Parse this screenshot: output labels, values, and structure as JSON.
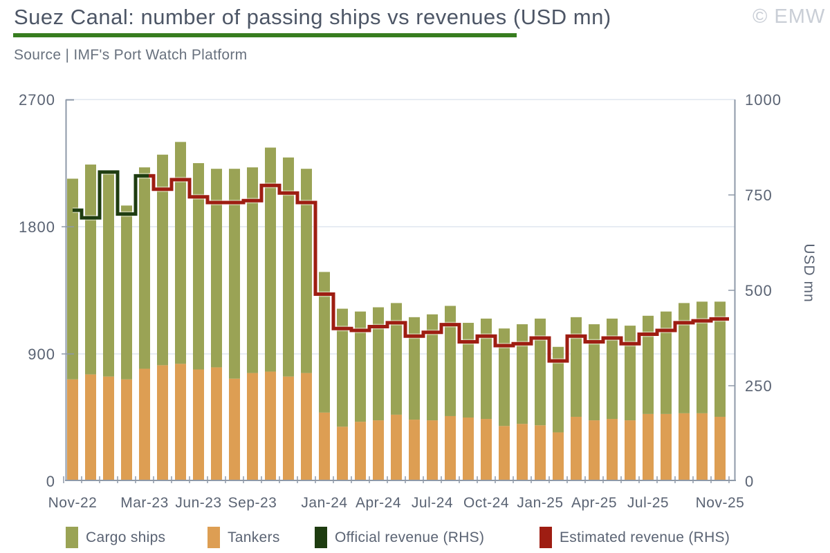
{
  "header": {
    "title": "Suez Canal: number of passing ships vs revenues (USD mn)",
    "copyright": "© EMW",
    "source": "Source | IMF's Port Watch Platform"
  },
  "colors": {
    "cargo": "#9aa355",
    "tankers": "#dd9e53",
    "official": "#1e3c10",
    "estimated": "#9e1d12",
    "gridline": "#dfe5ef",
    "axis": "#8e99a8",
    "tick_text": "#5a6373",
    "title_text": "#4d5666",
    "underline": "#377d1f"
  },
  "legend": {
    "items": [
      {
        "label": "Cargo ships",
        "color": "#9aa355"
      },
      {
        "label": "Tankers",
        "color": "#dd9e53"
      },
      {
        "label": "Official revenue (RHS)",
        "color": "#1e3c10"
      },
      {
        "label": "Estimated revenue (RHS)",
        "color": "#9e1d12"
      }
    ]
  },
  "chart_data": {
    "type": "bar",
    "stacked": true,
    "title": "Suez Canal: number of passing ships vs revenues (USD mn)",
    "xlabel": "",
    "ylabel_left": "",
    "ylabel_right": "USD mn",
    "left_axis": {
      "range": [
        0,
        2700
      ],
      "ticks": [
        0,
        900,
        1800,
        2700
      ]
    },
    "right_axis": {
      "range": [
        0,
        1000
      ],
      "ticks": [
        0,
        250,
        500,
        750,
        1000
      ]
    },
    "grid": "horizontal",
    "legend_position": "bottom",
    "categories": [
      "Nov-22",
      "Dec-22",
      "Jan-23",
      "Feb-23",
      "Mar-23",
      "Apr-23",
      "May-23",
      "Jun-23",
      "Jul-23",
      "Aug-23",
      "Sep-23",
      "Oct-23",
      "Nov-23",
      "Dec-23",
      "Jan-24",
      "Feb-24",
      "Mar-24",
      "Apr-24",
      "May-24",
      "Jun-24",
      "Jul-24",
      "Aug-24",
      "Sep-24",
      "Oct-24",
      "Nov-24",
      "Dec-24",
      "Jan-25",
      "Feb-25",
      "Mar-25",
      "Apr-25",
      "May-25",
      "Jun-25",
      "Jul-25",
      "Aug-25",
      "Sep-25",
      "Oct-25",
      "Nov-25"
    ],
    "x_ticks": [
      {
        "index": 0,
        "label": "Nov-22"
      },
      {
        "index": 4,
        "label": "Mar-23"
      },
      {
        "index": 7,
        "label": "Jun-23"
      },
      {
        "index": 10,
        "label": "Sep-23"
      },
      {
        "index": 14,
        "label": "Jan-24"
      },
      {
        "index": 17,
        "label": "Apr-24"
      },
      {
        "index": 20,
        "label": "Jul-24"
      },
      {
        "index": 23,
        "label": "Oct-24"
      },
      {
        "index": 26,
        "label": "Jan-25"
      },
      {
        "index": 29,
        "label": "Apr-25"
      },
      {
        "index": 32,
        "label": "Jul-25"
      },
      {
        "index": 36,
        "label": "Nov-25"
      }
    ],
    "series": [
      {
        "name": "Cargo ships",
        "kind": "bar",
        "axis": "left",
        "color": "#9aa355",
        "values": [
          1420,
          1485,
          1450,
          1230,
          1425,
          1490,
          1570,
          1460,
          1405,
          1485,
          1455,
          1585,
          1550,
          1445,
          995,
          835,
          780,
          800,
          790,
          725,
          750,
          780,
          670,
          710,
          690,
          705,
          755,
          605,
          705,
          680,
          710,
          670,
          695,
          725,
          780,
          790,
          815
        ]
      },
      {
        "name": "Tankers",
        "kind": "bar",
        "axis": "left",
        "color": "#dd9e53",
        "values": [
          720,
          755,
          740,
          720,
          795,
          820,
          830,
          790,
          805,
          725,
          765,
          775,
          740,
          765,
          485,
          385,
          420,
          430,
          470,
          435,
          430,
          460,
          450,
          440,
          390,
          405,
          395,
          345,
          455,
          430,
          440,
          430,
          475,
          475,
          480,
          480,
          455
        ]
      },
      {
        "name": "Official revenue (RHS)",
        "kind": "step-line",
        "axis": "right",
        "color": "#1e3c10",
        "start_index": 0,
        "values": [
          710,
          690,
          810,
          700,
          800
        ]
      },
      {
        "name": "Estimated revenue (RHS)",
        "kind": "step-line",
        "axis": "right",
        "color": "#9e1d12",
        "start_index": 4,
        "values": [
          800,
          765,
          790,
          745,
          730,
          730,
          735,
          775,
          755,
          730,
          490,
          400,
          395,
          405,
          415,
          380,
          390,
          410,
          365,
          380,
          355,
          360,
          375,
          315,
          380,
          365,
          375,
          360,
          385,
          395,
          415,
          420,
          425
        ]
      }
    ]
  }
}
